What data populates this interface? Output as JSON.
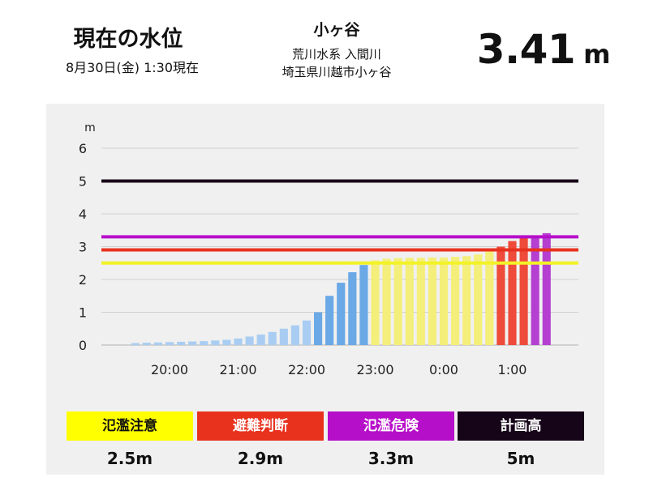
{
  "header": {
    "title": "現在の水位",
    "timestamp": "8月30日(金) 1:30現在",
    "station": "小ヶ谷",
    "river": "荒川水系 入間川",
    "location": "埼玉県川越市小ヶ谷",
    "level_value": "3.41",
    "level_unit": "m"
  },
  "legend": [
    {
      "label": "氾濫注意",
      "value": "2.5m",
      "color": "#ffff00",
      "text_color": "#111111"
    },
    {
      "label": "避難判断",
      "value": "2.9m",
      "color": "#e8321e",
      "text_color": "#ffffff"
    },
    {
      "label": "氾濫危険",
      "value": "3.3m",
      "color": "#b60fc9",
      "text_color": "#ffffff"
    },
    {
      "label": "計画高",
      "value": "5m",
      "color": "#160418",
      "text_color": "#ffffff"
    }
  ],
  "chart_data": {
    "type": "bar",
    "ylabel": "m",
    "ylim": [
      0,
      6
    ],
    "yticks": [
      0,
      1,
      2,
      3,
      4,
      5,
      6
    ],
    "grid": true,
    "xticks": [
      "20:00",
      "21:00",
      "22:00",
      "23:00",
      "0:00",
      "1:00"
    ],
    "thresholds": [
      {
        "name": "氾濫注意",
        "value": 2.5,
        "color": "#f2f227"
      },
      {
        "name": "避難判断",
        "value": 2.9,
        "color": "#e8321e"
      },
      {
        "name": "氾濫危険",
        "value": 3.3,
        "color": "#b60fc9"
      },
      {
        "name": "計画高",
        "value": 5.0,
        "color": "#160418"
      }
    ],
    "x": [
      "19:30",
      "19:40",
      "19:50",
      "20:00",
      "20:10",
      "20:20",
      "20:30",
      "20:40",
      "20:50",
      "21:00",
      "21:10",
      "21:20",
      "21:30",
      "21:40",
      "21:50",
      "22:00",
      "22:10",
      "22:20",
      "22:30",
      "22:40",
      "22:50",
      "23:00",
      "23:10",
      "23:20",
      "23:30",
      "23:40",
      "23:50",
      "0:00",
      "0:10",
      "0:20",
      "0:30",
      "0:40",
      "0:50",
      "1:00",
      "1:10",
      "1:20",
      "1:30"
    ],
    "values": [
      0.06,
      0.07,
      0.08,
      0.09,
      0.1,
      0.11,
      0.12,
      0.14,
      0.16,
      0.2,
      0.26,
      0.32,
      0.4,
      0.5,
      0.6,
      0.75,
      1.0,
      1.5,
      1.9,
      2.22,
      2.44,
      2.58,
      2.63,
      2.65,
      2.66,
      2.66,
      2.67,
      2.67,
      2.69,
      2.71,
      2.76,
      2.87,
      3.0,
      3.17,
      3.28,
      3.32,
      3.41
    ]
  }
}
